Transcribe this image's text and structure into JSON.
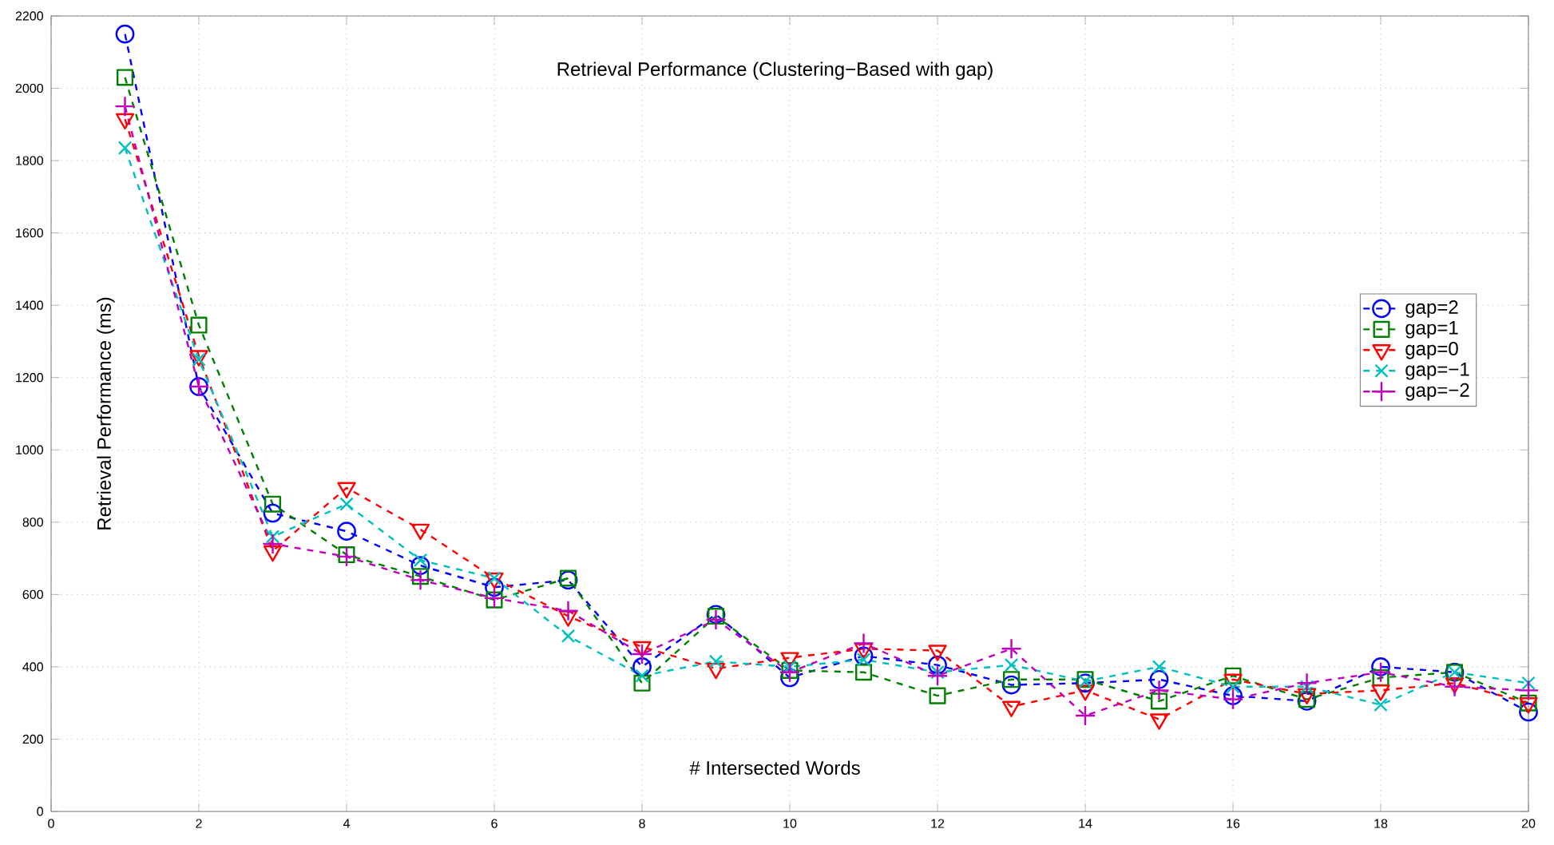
{
  "chart_data": {
    "type": "line",
    "title": "Retrieval Performance (Clustering−Based with gap)",
    "xlabel": "# Intersected Words",
    "ylabel": "Retrieval Performance (ms)",
    "x": [
      1,
      2,
      3,
      4,
      5,
      6,
      7,
      8,
      9,
      10,
      11,
      12,
      13,
      14,
      15,
      16,
      17,
      18,
      19,
      20
    ],
    "xlim": [
      0,
      20
    ],
    "xticks": [
      0,
      2,
      4,
      6,
      8,
      10,
      12,
      14,
      16,
      18,
      20
    ],
    "ylim": [
      0,
      2200
    ],
    "yticks": [
      0,
      200,
      400,
      600,
      800,
      1000,
      1200,
      1400,
      1600,
      1800,
      2000,
      2200
    ],
    "grid": true,
    "legend": "right",
    "line_style": "dashed",
    "series": [
      {
        "name": "gap=2",
        "color": "#0000ff",
        "marker": "circle",
        "values": [
          2150,
          1175,
          825,
          775,
          680,
          620,
          640,
          400,
          545,
          370,
          430,
          405,
          350,
          355,
          365,
          320,
          305,
          400,
          385,
          275
        ]
      },
      {
        "name": "gap=1",
        "color": "#008000",
        "marker": "square",
        "values": [
          2030,
          1345,
          850,
          710,
          650,
          585,
          645,
          355,
          540,
          390,
          385,
          320,
          365,
          365,
          305,
          375,
          310,
          370,
          385,
          300
        ]
      },
      {
        "name": "gap=0",
        "color": "#ff0000",
        "marker": "triangle",
        "values": [
          1915,
          1260,
          720,
          895,
          780,
          645,
          540,
          455,
          395,
          425,
          450,
          445,
          290,
          335,
          255,
          365,
          325,
          335,
          355,
          300
        ]
      },
      {
        "name": "gap=−1",
        "color": "#00bfbf",
        "marker": "cross",
        "values": [
          1835,
          1250,
          760,
          850,
          695,
          645,
          485,
          375,
          415,
          400,
          420,
          385,
          405,
          360,
          400,
          345,
          345,
          295,
          385,
          355
        ]
      },
      {
        "name": "gap=−2",
        "color": "#bf00bf",
        "marker": "plus",
        "values": [
          1950,
          1175,
          740,
          705,
          640,
          590,
          555,
          435,
          530,
          385,
          465,
          375,
          450,
          265,
          335,
          310,
          355,
          385,
          345,
          335
        ]
      }
    ]
  }
}
